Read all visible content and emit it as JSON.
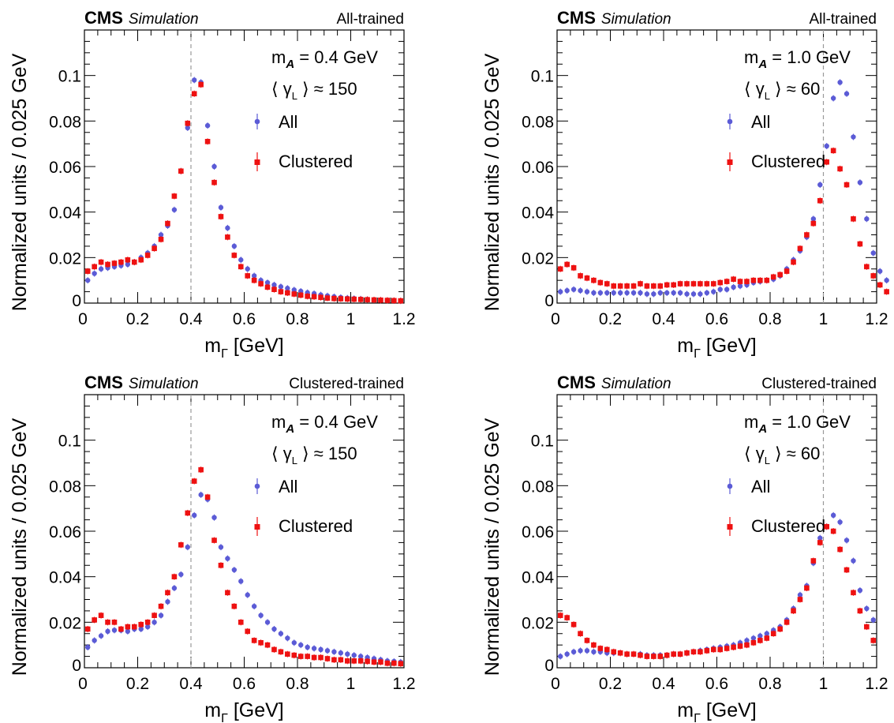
{
  "figure": {
    "experiment": "CMS",
    "status": "Simulation",
    "xlabel_main": "m",
    "xlabel_sub": "Γ",
    "xlabel_unit": " [GeV]",
    "ylabel": "Normalized units / 0.025 GeV",
    "legend": {
      "all": "All",
      "clustered": "Clustered"
    }
  },
  "colors": {
    "all": "#5b5bd6",
    "clustered": "#ee1111",
    "guide": "#999999"
  },
  "chart_data": [
    {
      "type": "scatter",
      "title": "All-trained",
      "mass_label": "m",
      "mass_sub": "A",
      "mass_value": " = 0.4 GeV",
      "boost_prefix": "⟨ γ",
      "boost_sub": "L",
      "boost_suffix": " ⟩ ≈ 150",
      "mass_line": 0.4,
      "xlim": [
        0,
        1.2
      ],
      "ylim": [
        0,
        0.12
      ],
      "xticks": [
        "0",
        "0.2",
        "0.4",
        "0.6",
        "0.8",
        "1",
        "1.2"
      ],
      "yticks": [
        "0",
        "0.02",
        "0.04",
        "0.06",
        "0.08",
        "0.1"
      ],
      "series": [
        {
          "name": "All",
          "values": [
            0.01,
            0.013,
            0.015,
            0.0155,
            0.016,
            0.0165,
            0.017,
            0.018,
            0.02,
            0.022,
            0.025,
            0.03,
            0.034,
            0.041,
            0.058,
            0.077,
            0.098,
            0.097,
            0.078,
            0.06,
            0.042,
            0.033,
            0.025,
            0.019,
            0.015,
            0.012,
            0.01,
            0.009,
            0.008,
            0.0072,
            0.0065,
            0.0058,
            0.0052,
            0.0046,
            0.0042,
            0.0036,
            0.0032,
            0.0028,
            0.0025,
            0.0022,
            0.002,
            0.0018,
            0.0016,
            0.0014,
            0.0013,
            0.0012,
            0.0011,
            0.001
          ]
        },
        {
          "name": "Clustered",
          "values": [
            0.014,
            0.016,
            0.018,
            0.017,
            0.0175,
            0.018,
            0.019,
            0.018,
            0.019,
            0.021,
            0.024,
            0.028,
            0.035,
            0.047,
            0.058,
            0.079,
            0.092,
            0.096,
            0.071,
            0.053,
            0.038,
            0.029,
            0.021,
            0.016,
            0.012,
            0.01,
            0.0085,
            0.007,
            0.006,
            0.005,
            0.0045,
            0.004,
            0.0035,
            0.003,
            0.0028,
            0.0025,
            0.0022,
            0.002,
            0.0019,
            0.0018,
            0.0017,
            0.0016,
            0.0015,
            0.0014,
            0.0013,
            0.0012,
            0.0011,
            0.001
          ]
        }
      ]
    },
    {
      "type": "scatter",
      "title": "All-trained",
      "mass_label": "m",
      "mass_sub": "A",
      "mass_value": " = 1.0 GeV",
      "boost_prefix": "⟨ γ",
      "boost_sub": "L",
      "boost_suffix": " ⟩ ≈ 60",
      "mass_line": 1.0,
      "xlim": [
        0,
        1.2
      ],
      "ylim": [
        0,
        0.12
      ],
      "xticks": [
        "0",
        "0.2",
        "0.4",
        "0.6",
        "0.8",
        "1",
        "1.2"
      ],
      "yticks": [
        "0",
        "0.02",
        "0.04",
        "0.06",
        "0.08",
        "0.1"
      ],
      "series": [
        {
          "name": "All",
          "values": [
            0.005,
            0.0055,
            0.006,
            0.0055,
            0.005,
            0.0045,
            0.0045,
            0.0045,
            0.0045,
            0.0045,
            0.0045,
            0.0045,
            0.0045,
            0.004,
            0.004,
            0.0045,
            0.0045,
            0.0045,
            0.0045,
            0.004,
            0.004,
            0.004,
            0.0045,
            0.005,
            0.006,
            0.006,
            0.007,
            0.0075,
            0.008,
            0.009,
            0.0095,
            0.01,
            0.0105,
            0.012,
            0.015,
            0.019,
            0.023,
            0.029,
            0.037,
            0.052,
            0.069,
            0.09,
            0.097,
            0.092,
            0.073,
            0.053,
            0.037,
            0.022,
            0.014,
            0.01
          ]
        },
        {
          "name": "Clustered",
          "values": [
            0.015,
            0.017,
            0.0155,
            0.012,
            0.011,
            0.01,
            0.009,
            0.0085,
            0.0075,
            0.0075,
            0.0075,
            0.0075,
            0.0085,
            0.0075,
            0.0075,
            0.0075,
            0.008,
            0.008,
            0.0085,
            0.0085,
            0.0085,
            0.0085,
            0.0085,
            0.0085,
            0.009,
            0.0095,
            0.0105,
            0.0095,
            0.0095,
            0.01,
            0.01,
            0.01,
            0.0115,
            0.0125,
            0.014,
            0.018,
            0.024,
            0.03,
            0.035,
            0.045,
            0.062,
            0.067,
            0.059,
            0.052,
            0.037,
            0.026,
            0.016,
            0.012,
            0.008,
            0.005
          ]
        }
      ]
    },
    {
      "type": "scatter",
      "title": "Clustered-trained",
      "mass_label": "m",
      "mass_sub": "A",
      "mass_value": " = 0.4 GeV",
      "boost_prefix": "⟨ γ",
      "boost_sub": "L",
      "boost_suffix": " ⟩ ≈ 150",
      "mass_line": 0.4,
      "xlim": [
        0,
        1.2
      ],
      "ylim": [
        0,
        0.12
      ],
      "xticks": [
        "0",
        "0.2",
        "0.4",
        "0.6",
        "0.8",
        "1",
        "1.2"
      ],
      "yticks": [
        "0",
        "0.02",
        "0.04",
        "0.06",
        "0.08",
        "0.1"
      ],
      "series": [
        {
          "name": "All",
          "values": [
            0.009,
            0.012,
            0.014,
            0.016,
            0.0165,
            0.0165,
            0.016,
            0.017,
            0.017,
            0.018,
            0.02,
            0.023,
            0.029,
            0.035,
            0.041,
            0.053,
            0.067,
            0.076,
            0.074,
            0.066,
            0.053,
            0.048,
            0.043,
            0.038,
            0.032,
            0.027,
            0.023,
            0.02,
            0.017,
            0.015,
            0.013,
            0.011,
            0.01,
            0.009,
            0.0085,
            0.008,
            0.0075,
            0.007,
            0.0065,
            0.006,
            0.0055,
            0.005,
            0.0045,
            0.004,
            0.0035,
            0.003,
            0.0028,
            0.0025
          ]
        },
        {
          "name": "Clustered",
          "values": [
            0.017,
            0.021,
            0.023,
            0.02,
            0.02,
            0.017,
            0.018,
            0.018,
            0.019,
            0.02,
            0.023,
            0.027,
            0.033,
            0.04,
            0.054,
            0.068,
            0.082,
            0.087,
            0.075,
            0.056,
            0.045,
            0.033,
            0.027,
            0.02,
            0.016,
            0.012,
            0.011,
            0.01,
            0.008,
            0.007,
            0.006,
            0.0055,
            0.005,
            0.005,
            0.0045,
            0.0045,
            0.004,
            0.0035,
            0.0035,
            0.003,
            0.003,
            0.003,
            0.0028,
            0.0025,
            0.0025,
            0.002,
            0.002,
            0.0018
          ]
        }
      ]
    },
    {
      "type": "scatter",
      "title": "Clustered-trained",
      "mass_label": "m",
      "mass_sub": "A",
      "mass_value": " = 1.0 GeV",
      "boost_prefix": "⟨ γ",
      "boost_sub": "L",
      "boost_suffix": " ⟩ ≈ 60",
      "mass_line": 1.0,
      "xlim": [
        0,
        1.2
      ],
      "ylim": [
        0,
        0.12
      ],
      "xticks": [
        "0",
        "0.2",
        "0.4",
        "0.6",
        "0.8",
        "1",
        "1.2"
      ],
      "yticks": [
        "0",
        "0.02",
        "0.04",
        "0.06",
        "0.08",
        "0.1"
      ],
      "series": [
        {
          "name": "All",
          "values": [
            0.005,
            0.006,
            0.007,
            0.0075,
            0.0075,
            0.007,
            0.007,
            0.0065,
            0.0065,
            0.0065,
            0.006,
            0.006,
            0.006,
            0.0055,
            0.0055,
            0.0055,
            0.0055,
            0.006,
            0.006,
            0.0065,
            0.007,
            0.0075,
            0.008,
            0.0085,
            0.009,
            0.0095,
            0.01,
            0.011,
            0.012,
            0.013,
            0.014,
            0.015,
            0.0165,
            0.018,
            0.021,
            0.026,
            0.032,
            0.036,
            0.046,
            0.057,
            0.062,
            0.067,
            0.064,
            0.056,
            0.047,
            0.034,
            0.026,
            0.021
          ]
        },
        {
          "name": "Clustered",
          "values": [
            0.023,
            0.022,
            0.019,
            0.015,
            0.012,
            0.01,
            0.0085,
            0.008,
            0.007,
            0.0065,
            0.006,
            0.006,
            0.0055,
            0.005,
            0.005,
            0.005,
            0.0055,
            0.006,
            0.006,
            0.0065,
            0.007,
            0.007,
            0.0075,
            0.008,
            0.008,
            0.0085,
            0.009,
            0.0095,
            0.01,
            0.011,
            0.012,
            0.013,
            0.015,
            0.017,
            0.02,
            0.025,
            0.03,
            0.035,
            0.047,
            0.055,
            0.062,
            0.06,
            0.052,
            0.043,
            0.033,
            0.025,
            0.018,
            0.012
          ]
        }
      ]
    }
  ]
}
